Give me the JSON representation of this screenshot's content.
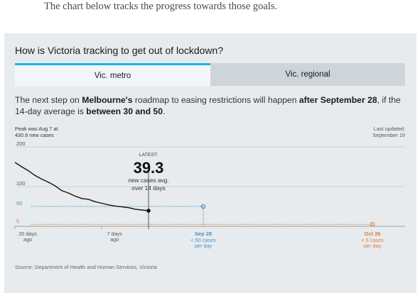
{
  "intro_text": "The chart below tracks the progress towards those goals.",
  "card": {
    "title": "How is Victoria tracking to get out of lockdown?",
    "tabs": [
      {
        "label": "Vic. metro"
      },
      {
        "label": "Vic. regional"
      }
    ],
    "desc": {
      "p1": "The next step on ",
      "b1": "Melbourne's",
      "p2": " roadmap to easing restrictions will happen ",
      "b2": "after September 28",
      "p3": ", if the 14-day average is ",
      "b3": "between 30 and 50",
      "p4": "."
    },
    "source": "Source: Department of Health and Human Services, Victoria"
  },
  "colors": {
    "accent_tab": "#18b5e4",
    "sep_target": "#4a90c8",
    "oct_target": "#e07b39",
    "line": "#111111"
  },
  "chart_data": {
    "type": "line",
    "peak_note": [
      "Peak was Aug 7 at",
      "430.6 new cases"
    ],
    "updated_note": [
      "Last updated:",
      "September 19"
    ],
    "ylim": [
      0,
      200
    ],
    "yticks": [
      "200",
      "100",
      "50",
      "5"
    ],
    "xticks": [
      {
        "label": [
          "20 days",
          "ago"
        ],
        "days_ago": 20
      },
      {
        "label": [
          "7 days",
          "ago"
        ],
        "days_ago": 7
      }
    ],
    "series": [
      {
        "x_days_ago": [
          20,
          19,
          18,
          17,
          16,
          15,
          14,
          13,
          12,
          11,
          10,
          9,
          8,
          7,
          6,
          5,
          4,
          3,
          2,
          1,
          0
        ],
        "values": [
          161,
          150,
          140,
          128,
          119,
          111,
          102,
          90,
          84,
          76,
          70,
          68,
          62,
          58,
          54,
          51,
          49,
          47,
          43,
          41,
          39.3
        ]
      }
    ],
    "latest": {
      "label": "LATEST:",
      "value": "39.3",
      "note": [
        "new cases avg.",
        "over 14 days"
      ]
    },
    "targets": [
      {
        "date": "Sep 28",
        "value": 50,
        "caption": [
          "< 50 cases",
          "per day"
        ],
        "color": "#4a90c8"
      },
      {
        "date": "Oct 26",
        "value": 5,
        "caption": [
          "< 5 cases",
          "per day"
        ],
        "color": "#e07b39"
      }
    ]
  }
}
